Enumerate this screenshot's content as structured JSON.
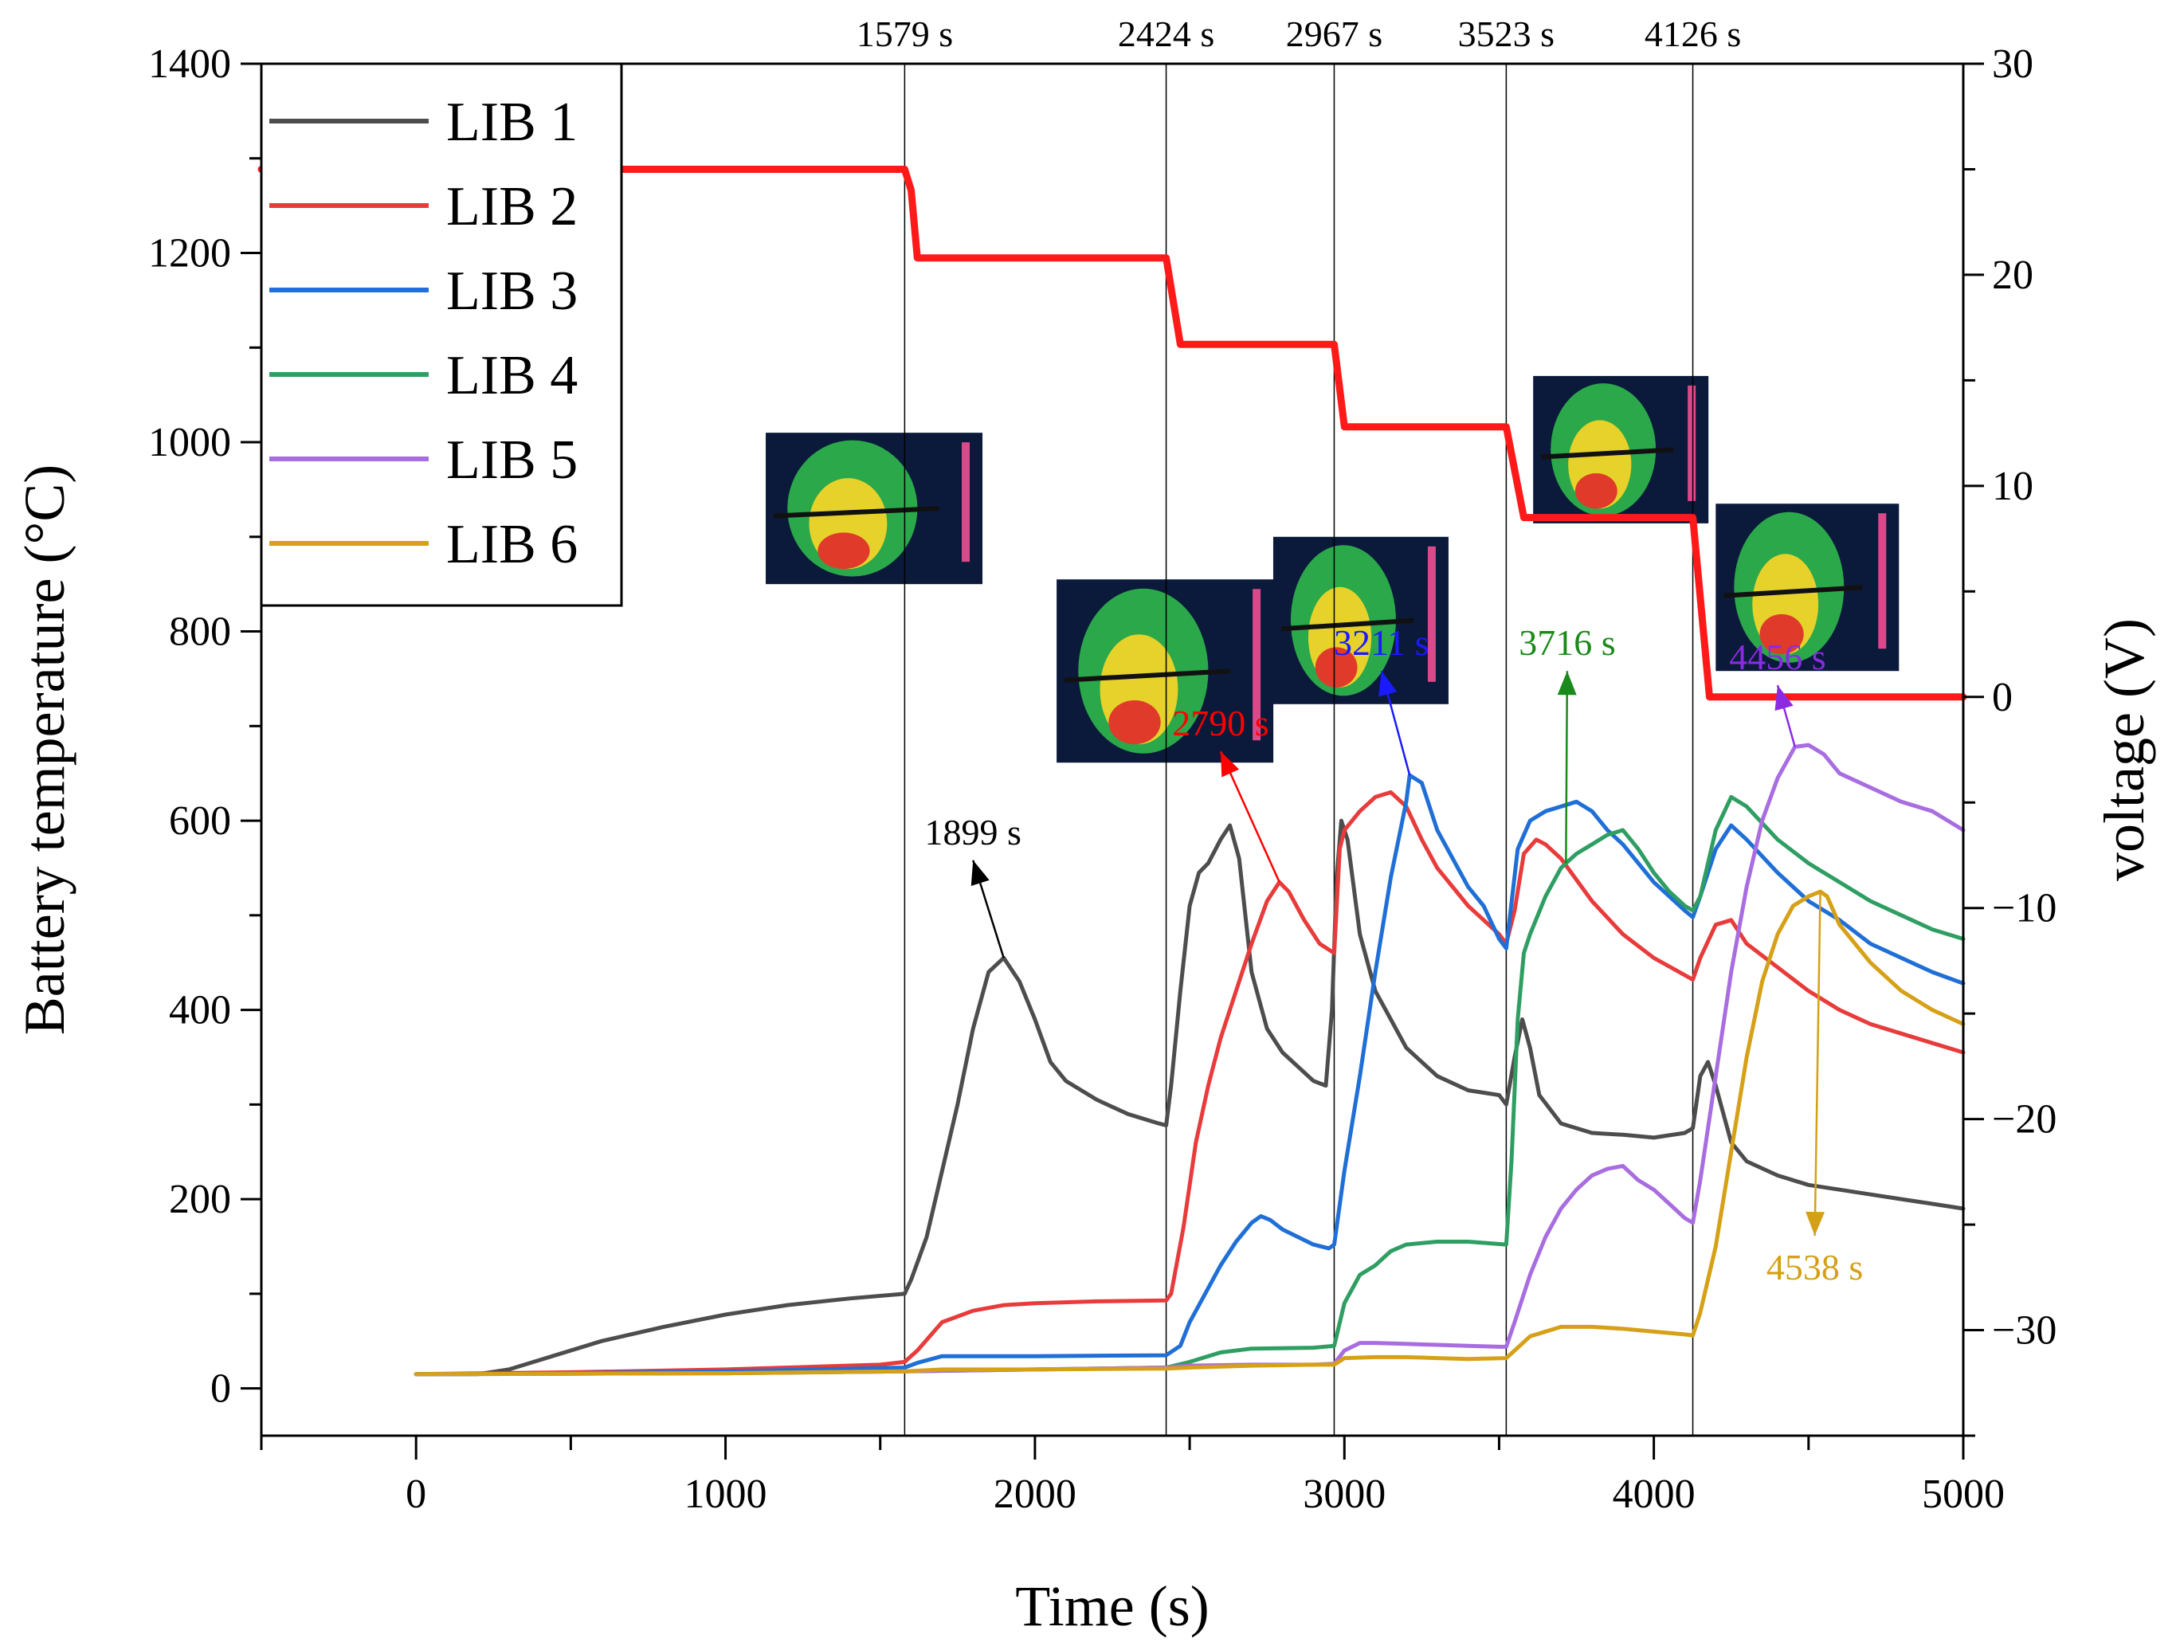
{
  "chart_data": {
    "type": "line",
    "title": "",
    "xlabel": "Time (s)",
    "ylabel": "Battery temperature (°C)",
    "y2label": "voltage (V)",
    "xlim": [
      -500,
      5000
    ],
    "ylim": [
      -50,
      1400
    ],
    "y2lim": [
      -35,
      30
    ],
    "xticks": [
      0,
      1000,
      2000,
      3000,
      4000,
      5000
    ],
    "xtick_labels": [
      "0",
      "1000",
      "2000",
      "3000",
      "4000",
      "5000"
    ],
    "yticks": [
      0,
      200,
      400,
      600,
      800,
      1000,
      1200,
      1400
    ],
    "ytick_labels": [
      "0",
      "200",
      "400",
      "600",
      "800",
      "1000",
      "1200",
      "1400"
    ],
    "y2ticks": [
      -30,
      -20,
      -10,
      0,
      10,
      20,
      30
    ],
    "y2tick_labels": [
      "−30",
      "−20",
      "−10",
      "0",
      "10",
      "20",
      "30"
    ],
    "legend_position": "top-left",
    "series": [
      {
        "name": "LIB 1",
        "color": "#4d4d4d",
        "axis": "left",
        "x": [
          0,
          200,
          300,
          400,
          600,
          800,
          1000,
          1200,
          1400,
          1579,
          1600,
          1650,
          1700,
          1750,
          1800,
          1850,
          1899,
          1950,
          2000,
          2050,
          2100,
          2200,
          2300,
          2400,
          2424,
          2440,
          2470,
          2500,
          2530,
          2560,
          2600,
          2630,
          2660,
          2700,
          2750,
          2800,
          2850,
          2900,
          2940,
          2960,
          2975,
          2990,
          3010,
          3050,
          3100,
          3200,
          3300,
          3400,
          3500,
          3523,
          3550,
          3575,
          3600,
          3630,
          3700,
          3800,
          3900,
          4000,
          4100,
          4126,
          4150,
          4175,
          4200,
          4250,
          4300,
          4400,
          4500,
          4600,
          4700,
          4800,
          4900,
          5000
        ],
        "y": [
          15,
          15,
          20,
          30,
          50,
          65,
          78,
          88,
          95,
          100,
          115,
          160,
          230,
          300,
          380,
          440,
          455,
          430,
          390,
          345,
          325,
          305,
          290,
          280,
          278,
          320,
          420,
          510,
          545,
          555,
          580,
          595,
          560,
          440,
          380,
          355,
          340,
          325,
          320,
          400,
          540,
          600,
          580,
          480,
          420,
          360,
          330,
          315,
          310,
          300,
          350,
          390,
          360,
          310,
          280,
          270,
          268,
          265,
          270,
          275,
          330,
          345,
          320,
          260,
          240,
          225,
          215,
          210,
          205,
          200,
          195,
          190
        ]
      },
      {
        "name": "LIB 2",
        "color": "#e83b3b",
        "axis": "left",
        "x": [
          0,
          500,
          1000,
          1500,
          1579,
          1620,
          1700,
          1800,
          1900,
          2000,
          2200,
          2424,
          2440,
          2480,
          2520,
          2560,
          2600,
          2650,
          2700,
          2750,
          2790,
          2820,
          2870,
          2920,
          2967,
          2985,
          3000,
          3050,
          3100,
          3150,
          3200,
          3250,
          3300,
          3400,
          3500,
          3523,
          3550,
          3580,
          3620,
          3650,
          3700,
          3800,
          3900,
          4000,
          4126,
          4150,
          4200,
          4250,
          4300,
          4400,
          4500,
          4600,
          4700,
          4800,
          4900,
          5000
        ],
        "y": [
          15,
          17,
          20,
          25,
          28,
          40,
          70,
          82,
          88,
          90,
          92,
          93,
          100,
          170,
          260,
          320,
          370,
          420,
          470,
          515,
          535,
          525,
          495,
          470,
          460,
          570,
          590,
          610,
          625,
          630,
          615,
          580,
          550,
          510,
          480,
          470,
          505,
          565,
          580,
          575,
          560,
          515,
          480,
          455,
          432,
          455,
          490,
          495,
          470,
          445,
          420,
          400,
          385,
          375,
          365,
          355
        ]
      },
      {
        "name": "LIB 3",
        "color": "#1f6fd6",
        "axis": "left",
        "x": [
          0,
          500,
          1000,
          1579,
          1620,
          1700,
          2000,
          2424,
          2470,
          2500,
          2550,
          2600,
          2650,
          2700,
          2730,
          2760,
          2800,
          2850,
          2900,
          2950,
          2967,
          3000,
          3050,
          3100,
          3150,
          3200,
          3211,
          3250,
          3300,
          3350,
          3400,
          3450,
          3500,
          3523,
          3560,
          3600,
          3650,
          3700,
          3750,
          3800,
          3850,
          3900,
          3950,
          4000,
          4050,
          4100,
          4126,
          4150,
          4200,
          4250,
          4300,
          4400,
          4500,
          4600,
          4700,
          4800,
          4900,
          5000
        ],
        "y": [
          15,
          16,
          18,
          22,
          27,
          34,
          34,
          35,
          45,
          70,
          100,
          130,
          155,
          175,
          182,
          178,
          168,
          160,
          152,
          148,
          152,
          230,
          330,
          440,
          540,
          620,
          648,
          640,
          590,
          560,
          530,
          510,
          475,
          465,
          570,
          600,
          610,
          615,
          620,
          610,
          590,
          575,
          555,
          535,
          520,
          505,
          498,
          520,
          570,
          595,
          580,
          545,
          515,
          495,
          470,
          455,
          440,
          428
        ]
      },
      {
        "name": "LIB 4",
        "color": "#2e9e62",
        "axis": "left",
        "x": [
          0,
          1000,
          1579,
          2000,
          2424,
          2500,
          2600,
          2700,
          2900,
          2967,
          3000,
          3050,
          3100,
          3150,
          3200,
          3300,
          3400,
          3523,
          3540,
          3560,
          3580,
          3600,
          3650,
          3700,
          3716,
          3750,
          3800,
          3850,
          3900,
          3950,
          4000,
          4050,
          4100,
          4126,
          4150,
          4200,
          4250,
          4300,
          4400,
          4500,
          4600,
          4700,
          4800,
          4900,
          5000
        ],
        "y": [
          15,
          16,
          18,
          20,
          22,
          28,
          38,
          42,
          43,
          45,
          90,
          120,
          130,
          145,
          152,
          155,
          155,
          152,
          240,
          390,
          460,
          480,
          520,
          550,
          555,
          565,
          575,
          585,
          590,
          570,
          545,
          525,
          510,
          505,
          520,
          590,
          625,
          615,
          580,
          555,
          535,
          515,
          500,
          485,
          475
        ]
      },
      {
        "name": "LIB 5",
        "color": "#a86de0",
        "axis": "left",
        "x": [
          0,
          1000,
          1579,
          2000,
          2424,
          2500,
          2700,
          2900,
          2967,
          3000,
          3050,
          3100,
          3200,
          3300,
          3400,
          3500,
          3523,
          3550,
          3600,
          3650,
          3700,
          3750,
          3800,
          3850,
          3900,
          3950,
          4000,
          4050,
          4100,
          4126,
          4150,
          4200,
          4250,
          4300,
          4350,
          4400,
          4456,
          4500,
          4550,
          4600,
          4700,
          4800,
          4900,
          5000
        ],
        "y": [
          15,
          16,
          18,
          20,
          22,
          24,
          25,
          25,
          26,
          40,
          48,
          48,
          47,
          46,
          45,
          44,
          44,
          70,
          120,
          160,
          190,
          210,
          225,
          232,
          235,
          220,
          210,
          195,
          180,
          175,
          220,
          330,
          440,
          530,
          600,
          645,
          678,
          680,
          670,
          650,
          635,
          620,
          610,
          590
        ]
      },
      {
        "name": "LIB 6",
        "color": "#d6a017",
        "axis": "left",
        "x": [
          0,
          1000,
          1579,
          1700,
          2000,
          2424,
          2500,
          2700,
          2900,
          2967,
          3000,
          3100,
          3200,
          3300,
          3400,
          3523,
          3550,
          3600,
          3700,
          3800,
          3900,
          4000,
          4100,
          4126,
          4150,
          4200,
          4250,
          4300,
          4350,
          4400,
          4450,
          4500,
          4538,
          4560,
          4600,
          4700,
          4800,
          4900,
          5000
        ],
        "y": [
          15,
          16,
          18,
          20,
          20,
          21,
          22,
          24,
          25,
          25,
          32,
          33,
          33,
          32,
          31,
          32,
          40,
          55,
          65,
          65,
          63,
          60,
          57,
          56,
          80,
          150,
          250,
          350,
          430,
          480,
          510,
          520,
          525,
          520,
          490,
          450,
          420,
          400,
          385
        ]
      },
      {
        "name": "voltage",
        "color": "#ff1a1a",
        "axis": "right",
        "step": true,
        "x": [
          -500,
          1579,
          1600,
          1620,
          2424,
          2470,
          2967,
          3000,
          3523,
          3580,
          4126,
          4180,
          5000
        ],
        "y": [
          25,
          25,
          24,
          20.8,
          20.8,
          16.7,
          16.7,
          12.8,
          12.8,
          8.5,
          8.5,
          0,
          0
        ]
      }
    ],
    "events": [
      {
        "time": 1579,
        "label": "1579 s"
      },
      {
        "time": 2424,
        "label": "2424 s"
      },
      {
        "time": 2967,
        "label": "2967 s"
      },
      {
        "time": 3523,
        "label": "3523 s"
      },
      {
        "time": 4126,
        "label": "4126 s"
      }
    ],
    "annotations": [
      {
        "text": "1899 s",
        "color": "#000000",
        "at": [
          1899,
          455
        ],
        "text_at": [
          1800,
          575
        ]
      },
      {
        "text": "2790 s",
        "color": "#ff0000",
        "at": [
          2790,
          535
        ],
        "text_at": [
          2600,
          690
        ]
      },
      {
        "text": "3211 s",
        "color": "#1a1aff",
        "at": [
          3211,
          648
        ],
        "text_at": [
          3120,
          775
        ]
      },
      {
        "text": "3716 s",
        "color": "#1a8a1a",
        "at": [
          3716,
          555
        ],
        "text_at": [
          3720,
          775
        ]
      },
      {
        "text": "4456 s",
        "color": "#8a2be2",
        "at": [
          4456,
          678
        ],
        "text_at": [
          4400,
          760
        ]
      },
      {
        "text": "4538 s",
        "color": "#d4a017",
        "at": [
          4538,
          525
        ],
        "text_at": [
          4520,
          115
        ]
      }
    ]
  }
}
